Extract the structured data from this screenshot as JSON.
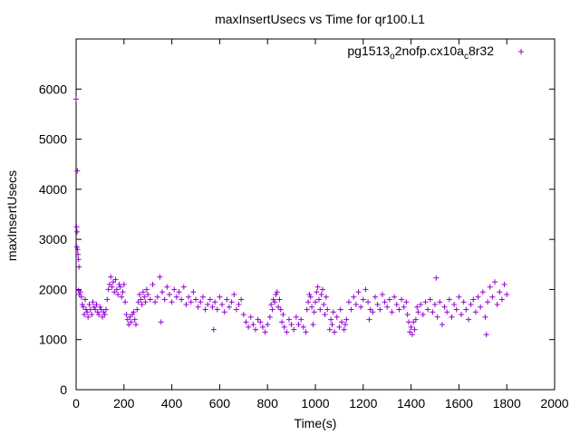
{
  "chart_data": {
    "type": "scatter",
    "title": "maxInsertUsecs vs Time for qr100.L1",
    "xlabel": "Time(s)",
    "ylabel": "maxInsertUsecs",
    "xlim": [
      0,
      2000
    ],
    "ylim": [
      0,
      7000
    ],
    "x_ticks": [
      "0",
      "200",
      "400",
      "600",
      "800",
      "1000",
      "1200",
      "1400",
      "1600",
      "1800",
      "2000"
    ],
    "y_ticks": [
      "0",
      "1000",
      "2000",
      "3000",
      "4000",
      "5000",
      "6000"
    ],
    "grid": false,
    "legend_position": "top-right",
    "series": [
      {
        "name_parts": {
          "part1": "pg1513",
          "sub1": "o",
          "part2": "2nofp.cx10a",
          "sub2": "c",
          "part3": "8r32"
        },
        "color": "#9400d3",
        "marker": "plus",
        "sample_interval_s": 1,
        "points": [
          [
            0,
            5800
          ],
          [
            5,
            4370
          ],
          [
            2,
            3250
          ],
          [
            4,
            3150
          ],
          [
            3,
            2850
          ],
          [
            6,
            2800
          ],
          [
            8,
            2700
          ],
          [
            10,
            2600
          ],
          [
            12,
            2450
          ],
          [
            10,
            1980
          ],
          [
            14,
            1900
          ],
          [
            18,
            1950
          ],
          [
            22,
            1850
          ],
          [
            26,
            1700
          ],
          [
            30,
            1650
          ],
          [
            34,
            1500
          ],
          [
            38,
            1800
          ],
          [
            42,
            1600
          ],
          [
            46,
            1550
          ],
          [
            50,
            1450
          ],
          [
            55,
            1700
          ],
          [
            60,
            1600
          ],
          [
            65,
            1500
          ],
          [
            70,
            1750
          ],
          [
            75,
            1650
          ],
          [
            80,
            1600
          ],
          [
            85,
            1700
          ],
          [
            90,
            1550
          ],
          [
            95,
            1500
          ],
          [
            100,
            1650
          ],
          [
            105,
            1600
          ],
          [
            110,
            1450
          ],
          [
            115,
            1550
          ],
          [
            120,
            1500
          ],
          [
            125,
            1600
          ],
          [
            130,
            1800
          ],
          [
            135,
            2000
          ],
          [
            140,
            2100
          ],
          [
            145,
            2250
          ],
          [
            150,
            2050
          ],
          [
            155,
            2150
          ],
          [
            160,
            1950
          ],
          [
            165,
            2200
          ],
          [
            170,
            2000
          ],
          [
            175,
            1900
          ],
          [
            180,
            2100
          ],
          [
            185,
            2050
          ],
          [
            190,
            1850
          ],
          [
            195,
            1950
          ],
          [
            200,
            2100
          ],
          [
            205,
            1750
          ],
          [
            210,
            1500
          ],
          [
            215,
            1400
          ],
          [
            220,
            1300
          ],
          [
            225,
            1450
          ],
          [
            230,
            1350
          ],
          [
            235,
            1500
          ],
          [
            240,
            1550
          ],
          [
            245,
            1400
          ],
          [
            250,
            1300
          ],
          [
            255,
            1600
          ],
          [
            260,
            1750
          ],
          [
            265,
            1900
          ],
          [
            270,
            1800
          ],
          [
            275,
            1700
          ],
          [
            280,
            1950
          ],
          [
            285,
            1850
          ],
          [
            290,
            1750
          ],
          [
            295,
            2000
          ],
          [
            300,
            1900
          ],
          [
            310,
            1800
          ],
          [
            320,
            2100
          ],
          [
            330,
            1750
          ],
          [
            340,
            1850
          ],
          [
            350,
            2250
          ],
          [
            355,
            1350
          ],
          [
            360,
            1950
          ],
          [
            370,
            1800
          ],
          [
            380,
            2050
          ],
          [
            390,
            1900
          ],
          [
            400,
            1750
          ],
          [
            410,
            2000
          ],
          [
            420,
            1850
          ],
          [
            430,
            1950
          ],
          [
            440,
            1800
          ],
          [
            450,
            2050
          ],
          [
            460,
            1700
          ],
          [
            470,
            1850
          ],
          [
            480,
            1750
          ],
          [
            490,
            1950
          ],
          [
            500,
            1800
          ],
          [
            510,
            1650
          ],
          [
            520,
            1750
          ],
          [
            530,
            1850
          ],
          [
            540,
            1600
          ],
          [
            550,
            1700
          ],
          [
            560,
            1800
          ],
          [
            570,
            1650
          ],
          [
            575,
            1200
          ],
          [
            580,
            1750
          ],
          [
            590,
            1600
          ],
          [
            600,
            1850
          ],
          [
            610,
            1700
          ],
          [
            620,
            1550
          ],
          [
            630,
            1800
          ],
          [
            640,
            1650
          ],
          [
            650,
            1750
          ],
          [
            660,
            1900
          ],
          [
            670,
            1600
          ],
          [
            680,
            1700
          ],
          [
            690,
            1800
          ],
          [
            700,
            1500
          ],
          [
            710,
            1350
          ],
          [
            720,
            1250
          ],
          [
            730,
            1450
          ],
          [
            740,
            1300
          ],
          [
            750,
            1200
          ],
          [
            760,
            1400
          ],
          [
            770,
            1350
          ],
          [
            780,
            1250
          ],
          [
            790,
            1150
          ],
          [
            800,
            1300
          ],
          [
            810,
            1450
          ],
          [
            815,
            1700
          ],
          [
            820,
            1600
          ],
          [
            825,
            1800
          ],
          [
            830,
            1750
          ],
          [
            835,
            1900
          ],
          [
            840,
            1950
          ],
          [
            845,
            1650
          ],
          [
            850,
            1800
          ],
          [
            855,
            1600
          ],
          [
            860,
            1350
          ],
          [
            865,
            1500
          ],
          [
            870,
            1250
          ],
          [
            880,
            1150
          ],
          [
            890,
            1400
          ],
          [
            900,
            1300
          ],
          [
            910,
            1200
          ],
          [
            920,
            1450
          ],
          [
            930,
            1300
          ],
          [
            940,
            1400
          ],
          [
            950,
            1250
          ],
          [
            960,
            1150
          ],
          [
            965,
            1600
          ],
          [
            970,
            1750
          ],
          [
            975,
            1900
          ],
          [
            980,
            1850
          ],
          [
            985,
            1650
          ],
          [
            990,
            1300
          ],
          [
            995,
            1550
          ],
          [
            1000,
            1750
          ],
          [
            1005,
            1950
          ],
          [
            1010,
            2050
          ],
          [
            1015,
            1800
          ],
          [
            1020,
            1600
          ],
          [
            1025,
            1900
          ],
          [
            1030,
            2000
          ],
          [
            1035,
            1700
          ],
          [
            1040,
            1500
          ],
          [
            1045,
            1850
          ],
          [
            1050,
            1600
          ],
          [
            1060,
            1200
          ],
          [
            1065,
            1400
          ],
          [
            1070,
            1300
          ],
          [
            1075,
            1550
          ],
          [
            1080,
            1150
          ],
          [
            1090,
            1450
          ],
          [
            1100,
            1250
          ],
          [
            1105,
            1600
          ],
          [
            1110,
            1350
          ],
          [
            1120,
            1200
          ],
          [
            1125,
            1300
          ],
          [
            1130,
            1400
          ],
          [
            1140,
            1750
          ],
          [
            1150,
            1600
          ],
          [
            1160,
            1850
          ],
          [
            1170,
            1700
          ],
          [
            1180,
            1950
          ],
          [
            1190,
            1650
          ],
          [
            1200,
            1800
          ],
          [
            1210,
            2000
          ],
          [
            1220,
            1750
          ],
          [
            1225,
            1400
          ],
          [
            1230,
            1600
          ],
          [
            1240,
            1550
          ],
          [
            1250,
            1850
          ],
          [
            1260,
            1700
          ],
          [
            1270,
            1600
          ],
          [
            1280,
            1900
          ],
          [
            1290,
            1750
          ],
          [
            1300,
            1650
          ],
          [
            1310,
            1800
          ],
          [
            1320,
            1550
          ],
          [
            1330,
            1850
          ],
          [
            1340,
            1700
          ],
          [
            1350,
            1600
          ],
          [
            1360,
            1800
          ],
          [
            1370,
            1650
          ],
          [
            1380,
            1750
          ],
          [
            1385,
            1500
          ],
          [
            1390,
            1350
          ],
          [
            1395,
            1150
          ],
          [
            1400,
            1250
          ],
          [
            1405,
            1100
          ],
          [
            1410,
            1350
          ],
          [
            1415,
            1200
          ],
          [
            1420,
            1400
          ],
          [
            1425,
            1650
          ],
          [
            1430,
            1550
          ],
          [
            1440,
            1700
          ],
          [
            1450,
            1500
          ],
          [
            1460,
            1750
          ],
          [
            1470,
            1600
          ],
          [
            1480,
            1800
          ],
          [
            1490,
            1550
          ],
          [
            1500,
            1700
          ],
          [
            1505,
            2230
          ],
          [
            1510,
            1450
          ],
          [
            1520,
            1750
          ],
          [
            1530,
            1300
          ],
          [
            1540,
            1650
          ],
          [
            1550,
            1550
          ],
          [
            1560,
            1800
          ],
          [
            1570,
            1450
          ],
          [
            1580,
            1700
          ],
          [
            1590,
            1600
          ],
          [
            1600,
            1850
          ],
          [
            1610,
            1500
          ],
          [
            1620,
            1750
          ],
          [
            1630,
            1600
          ],
          [
            1640,
            1400
          ],
          [
            1650,
            1700
          ],
          [
            1660,
            1800
          ],
          [
            1670,
            1550
          ],
          [
            1680,
            1850
          ],
          [
            1690,
            1650
          ],
          [
            1700,
            1950
          ],
          [
            1710,
            1450
          ],
          [
            1715,
            1100
          ],
          [
            1720,
            1750
          ],
          [
            1730,
            2050
          ],
          [
            1740,
            1850
          ],
          [
            1750,
            2150
          ],
          [
            1760,
            1700
          ],
          [
            1770,
            1950
          ],
          [
            1780,
            1800
          ],
          [
            1790,
            2100
          ],
          [
            1800,
            1900
          ]
        ]
      }
    ]
  }
}
